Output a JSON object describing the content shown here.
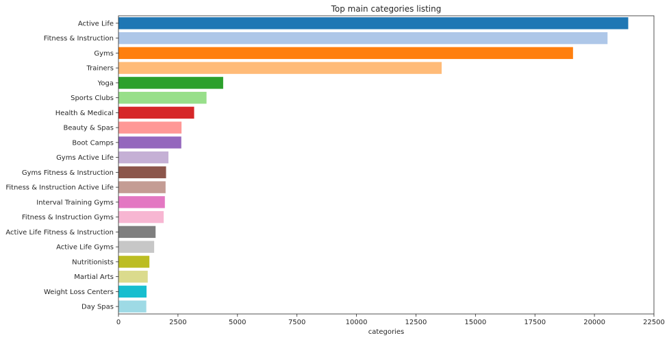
{
  "chart_data": {
    "type": "bar",
    "orientation": "horizontal",
    "title": "Top main categories listing",
    "xlabel": "categories",
    "ylabel": "",
    "xlim": [
      0,
      22500
    ],
    "xticks": [
      "0",
      "2500",
      "5000",
      "7500",
      "10000",
      "12500",
      "15000",
      "17500",
      "20000",
      "22500"
    ],
    "xtick_values": [
      0,
      2500,
      5000,
      7500,
      10000,
      12500,
      15000,
      17500,
      20000,
      22500
    ],
    "grid": false,
    "categories": [
      "Active Life",
      "Fitness & Instruction",
      "Gyms",
      "Trainers",
      "Yoga",
      "Sports Clubs",
      "Health & Medical",
      "Beauty & Spas",
      "Boot Camps",
      "Gyms Active Life",
      "Gyms Fitness & Instruction",
      "Fitness & Instruction Active Life",
      "Interval Training Gyms",
      "Fitness & Instruction Gyms",
      "Active Life Fitness & Instruction",
      "Active Life Gyms",
      "Nutritionists",
      "Martial Arts",
      "Weight Loss Centers",
      "Day Spas"
    ],
    "values": [
      21420,
      20550,
      19100,
      13580,
      4400,
      3700,
      3180,
      2650,
      2640,
      2100,
      2000,
      1980,
      1950,
      1900,
      1560,
      1500,
      1300,
      1230,
      1180,
      1170
    ],
    "colors": [
      "#1f77b4",
      "#aec7e8",
      "#ff7f0e",
      "#ffbb78",
      "#2ca02c",
      "#98df8a",
      "#d62728",
      "#ff9896",
      "#9467bd",
      "#c5b0d5",
      "#8c564b",
      "#c49c94",
      "#e377c2",
      "#f7b6d2",
      "#7f7f7f",
      "#c7c7c7",
      "#bcbd22",
      "#dbdb8d",
      "#17becf",
      "#9edae5"
    ]
  }
}
